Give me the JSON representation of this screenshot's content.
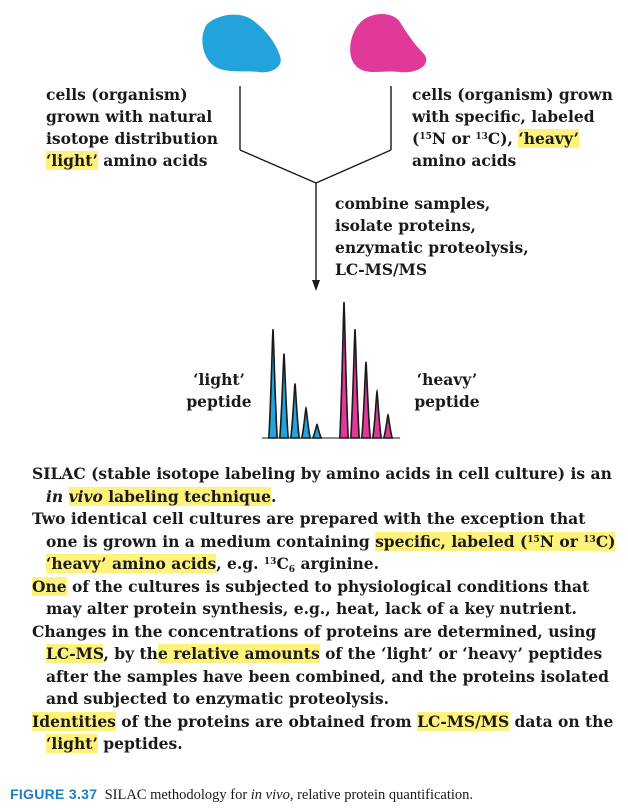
{
  "colors": {
    "light": "#23a3db",
    "heavy": "#e0399a",
    "highlight": "#fff27a",
    "figure_label": "#1e7fc0"
  },
  "left_cells": {
    "line1": "cells (organism)",
    "line2": "grown with natural",
    "line3": "isotope distribution",
    "line4_hl": "‘light’",
    "line4_rest": " amino acids"
  },
  "right_cells": {
    "line1": "cells (organism) grown",
    "line2": "with specific, labeled",
    "line3_pre": "(",
    "iso1": "15",
    "n": "N or ",
    "iso2": "13",
    "c": "C), ",
    "line3_hl": "‘heavy’",
    "line4": "amino acids"
  },
  "process": {
    "line1": "combine samples,",
    "line2": "isolate proteins,",
    "line3": "enzymatic proteolysis,",
    "line4": "LC-MS/MS"
  },
  "light_peptide": {
    "line1": "‘light’",
    "line2": "peptide"
  },
  "heavy_peptide": {
    "line1": "‘heavy’",
    "line2": "peptide"
  },
  "spectrum": {
    "light_peaks": [
      0.8,
      0.62,
      0.4,
      0.22,
      0.1
    ],
    "heavy_peaks": [
      1.0,
      0.8,
      0.56,
      0.34,
      0.17
    ]
  },
  "body": {
    "p1_a": "SILAC (stable isotope labeling by amino acids in cell culture) is an",
    "p1_in": "in",
    "p1_vivo": "vivo",
    "p1_hl": " labeling technique",
    "p1_end": ".",
    "p2_a": "Two identical cell cultures are prepared with the exception that one is grown in a medium containing ",
    "p2_hl1": "specific, labeled (",
    "p2_iso1": "15",
    "p2_hl2": "N or ",
    "p2_iso2": "13",
    "p2_hl3": "C) ‘heavy’ amino acids",
    "p2_b": ", e.g. ",
    "p2_iso3": "13",
    "p2_c": "C",
    "p2_sub": "6",
    "p2_d": " arginine.",
    "p3_hl": "One",
    "p3_rest": " of the cultures is subjected to physiological conditions that may alter protein synthesis, e.g., heat, lack of a key nutrient.",
    "p4_a": "Changes in the concentrations of proteins are determined, using ",
    "p4_hl1": "LC-MS",
    "p4_b": ", by th",
    "p4_hl2": "e relative amounts",
    "p4_c": " of the ‘light’ or ‘heavy’ peptides after the samples have been combined, and the proteins isolated and subjected to enzymatic proteolysis.",
    "p5_hl1": "Identities",
    "p5_a": " of the proteins are obtained from ",
    "p5_hl2": "LC-MS/MS",
    "p5_b": " data on the ",
    "p5_hl3": "‘light’",
    "p5_c": " peptides."
  },
  "caption": {
    "label": "FIGURE 3.37",
    "text_a": "  SILAC methodology for ",
    "text_italic": "in vivo,",
    "text_b": " relative protein quantification."
  }
}
